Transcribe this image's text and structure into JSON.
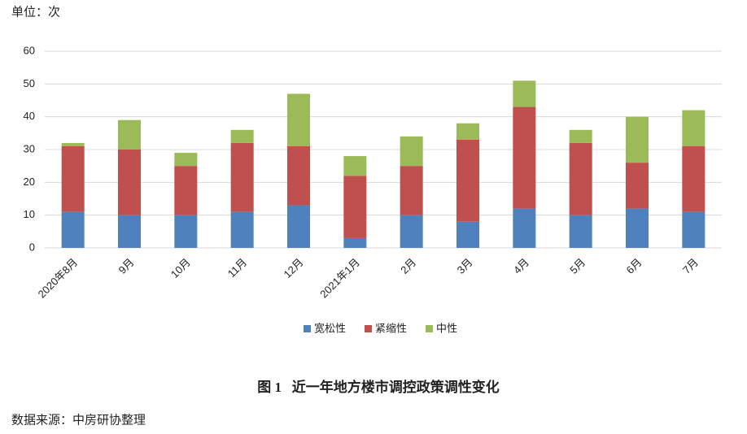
{
  "unit_label": "单位：次",
  "chart_data": {
    "type": "bar",
    "stacked": true,
    "categories": [
      "2020年8月",
      "9月",
      "10月",
      "11月",
      "12月",
      "2021年1月",
      "2月",
      "3月",
      "4月",
      "5月",
      "6月",
      "7月"
    ],
    "series": [
      {
        "name": "宽松性",
        "color": "#4f81bd",
        "values": [
          11,
          10,
          10,
          11,
          13,
          3,
          10,
          8,
          12,
          10,
          12,
          11
        ]
      },
      {
        "name": "紧缩性",
        "color": "#c0504d",
        "values": [
          20,
          20,
          15,
          21,
          18,
          19,
          15,
          25,
          31,
          22,
          14,
          20
        ]
      },
      {
        "name": "中性",
        "color": "#9bbb59",
        "values": [
          1,
          9,
          4,
          4,
          16,
          6,
          9,
          5,
          8,
          4,
          14,
          11
        ]
      }
    ],
    "ylim": [
      0,
      60
    ],
    "yticks": [
      0,
      10,
      20,
      30,
      40,
      50,
      60
    ],
    "grid": true,
    "legend": "bottom"
  },
  "caption": "图 1   近一年地方楼市调控政策调性变化",
  "source": "数据来源：中房研协整理"
}
